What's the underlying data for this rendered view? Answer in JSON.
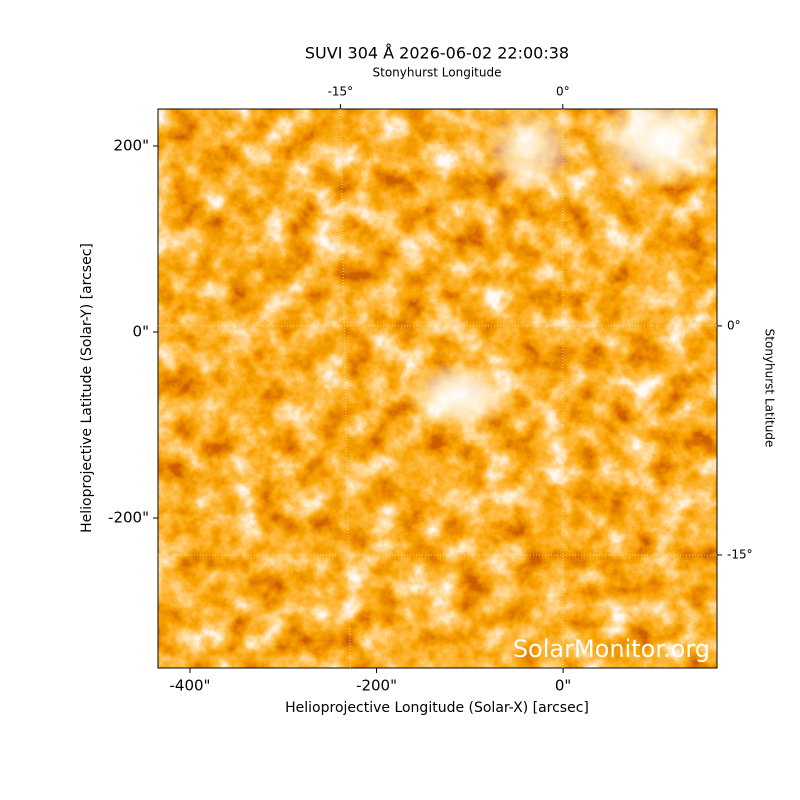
{
  "chart_data": {
    "type": "image",
    "title": "SUVI 304 Å 2026-06-02 22:00:38",
    "xlabel": "Helioprojective Longitude (Solar-X) [arcsec]",
    "ylabel": "Helioprojective Latitude (Solar-Y) [arcsec]",
    "x2label": "Stonyhurst Longitude",
    "y2label": "Stonyhurst Latitude",
    "annotation": "SolarMonitor.org",
    "xlim": [
      -434.3,
      165
    ],
    "ylim": [
      -361.3,
      239.8
    ],
    "xticks": [
      {
        "value": -400,
        "label": "-400\""
      },
      {
        "value": -200,
        "label": "-200\""
      },
      {
        "value": 0,
        "label": "0\""
      }
    ],
    "yticks": [
      {
        "value": -200,
        "label": "-200\""
      },
      {
        "value": 0,
        "label": "0\""
      },
      {
        "value": 200,
        "label": "200\""
      }
    ],
    "x2lim": [
      -27.3,
      10.4
    ],
    "x2ticks": [
      {
        "value": -15,
        "label": "-15°"
      },
      {
        "value": 0,
        "label": "0°"
      }
    ],
    "y2lim": [
      -22.4,
      14.2
    ],
    "y2ticks": [
      {
        "value": -15,
        "label": "-15°"
      },
      {
        "value": 0,
        "label": "0°"
      }
    ],
    "grid": true
  }
}
